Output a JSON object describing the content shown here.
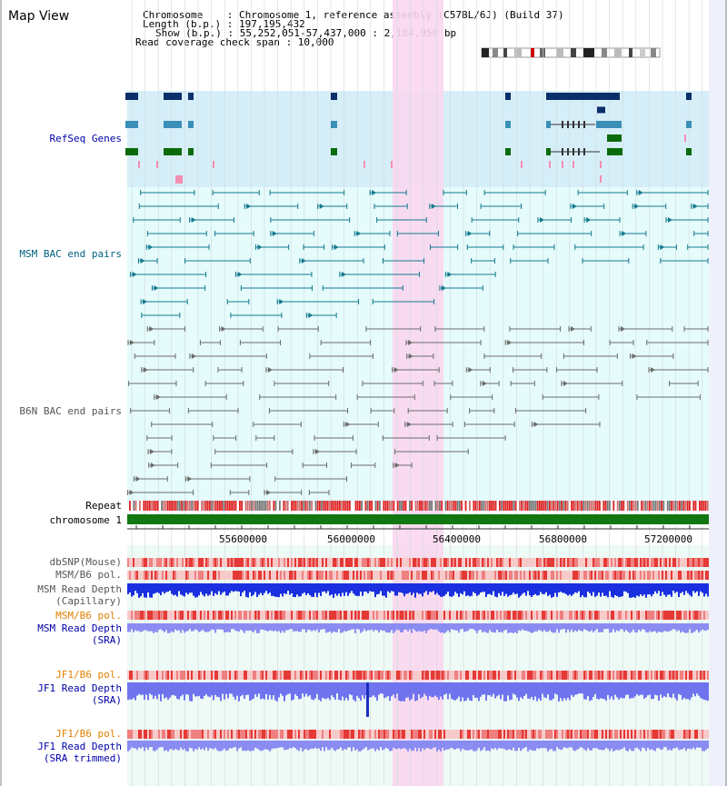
{
  "app": {
    "title": "Map View"
  },
  "info": {
    "line1": "Chromosome    : Chromosome 1, reference assembly (C57BL/6J) (Build 37)",
    "line2": "Length (b.p.) : 197,195,432",
    "line3": "Show (b.p.) : 55,252,051-57,437,000 : 2,184,950 bp",
    "line4": "Read coverage check span : 10,000"
  },
  "tracks": {
    "refseq": "RefSeq Genes",
    "msm_bac": "MSM BAC end pairs",
    "b6n_bac": "B6N BAC end pairs",
    "repeat": "Repeat",
    "chromosome": "chromosome 1",
    "dbsnp": "dbSNP(Mouse)",
    "msm_pol": "MSM/B6 pol.",
    "msm_depth_cap_1": "MSM Read Depth",
    "msm_depth_cap_2": "(Capillary)",
    "msm_pol_sra": "MSM/B6 pol.",
    "msm_depth_sra_1": "MSM Read Depth",
    "msm_depth_sra_2": "(SRA)",
    "jf1_pol": "JF1/B6 pol.",
    "jf1_depth_1": "JF1 Read Depth",
    "jf1_depth_2": "(SRA)",
    "jf1_pol_trim": "JF1/B6 pol.",
    "jf1_trim_1": "JF1 Read Depth",
    "jf1_trim_2": "(SRA trimmed)"
  },
  "axis": {
    "ticks": [
      "55600000",
      "56000000",
      "56400000",
      "56800000",
      "57200000"
    ]
  },
  "colors": {
    "blue_label": "#0000aa",
    "teal_label": "#006080",
    "gray_label": "#555555",
    "orange_label": "#e08000",
    "highlight": "#fad7f0",
    "refseq_bg": "#d6eef8",
    "track_bg": "#e6fbfb",
    "chromosome": "#117711"
  }
}
